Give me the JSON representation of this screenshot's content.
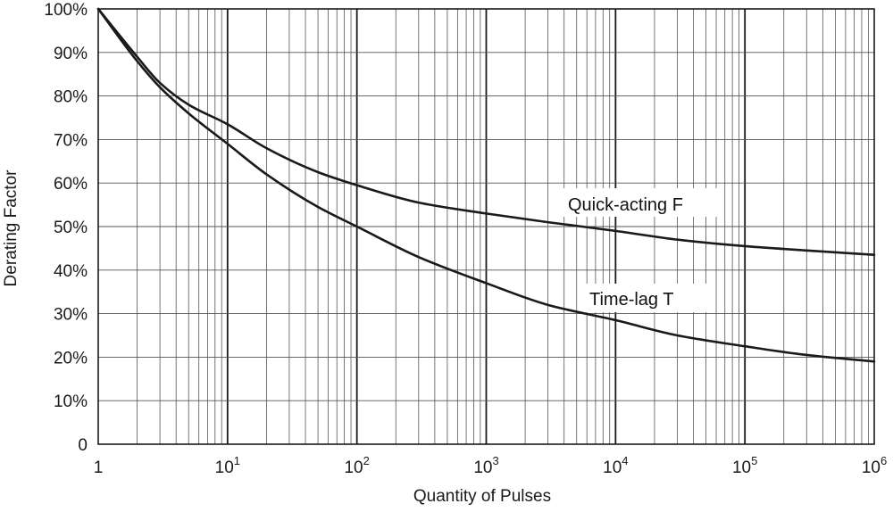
{
  "chart_data": {
    "type": "line",
    "xlabel": "Quantity of Pulses",
    "ylabel": "Derating Factor",
    "x_scale": "log",
    "xlim": [
      1,
      1000000
    ],
    "ylim": [
      0,
      100
    ],
    "grid": true,
    "x_ticks": [
      {
        "base": "1",
        "exp": ""
      },
      {
        "base": "10",
        "exp": "1"
      },
      {
        "base": "10",
        "exp": "2"
      },
      {
        "base": "10",
        "exp": "3"
      },
      {
        "base": "10",
        "exp": "4"
      },
      {
        "base": "10",
        "exp": "5"
      },
      {
        "base": "10",
        "exp": "6"
      }
    ],
    "y_ticks": [
      "0",
      "10%",
      "20%",
      "30%",
      "40%",
      "50%",
      "60%",
      "70%",
      "80%",
      "90%",
      "100%"
    ],
    "series": [
      {
        "name": "Quick-acting F",
        "x": [
          1,
          2,
          3,
          5,
          10,
          20,
          50,
          100,
          300,
          1000,
          3000,
          10000,
          30000,
          100000,
          300000,
          1000000
        ],
        "y": [
          100,
          89,
          83,
          78,
          73.5,
          68,
          62.5,
          59.5,
          55.5,
          53,
          51,
          49,
          47,
          45.5,
          44.5,
          43.5
        ]
      },
      {
        "name": "Time-lag T",
        "x": [
          1,
          2,
          3,
          5,
          10,
          20,
          50,
          100,
          300,
          1000,
          3000,
          10000,
          30000,
          100000,
          300000,
          1000000
        ],
        "y": [
          100,
          88,
          82,
          76,
          69,
          62,
          54.5,
          50,
          43,
          37,
          32,
          28.5,
          25,
          22.5,
          20.5,
          19
        ]
      }
    ]
  }
}
